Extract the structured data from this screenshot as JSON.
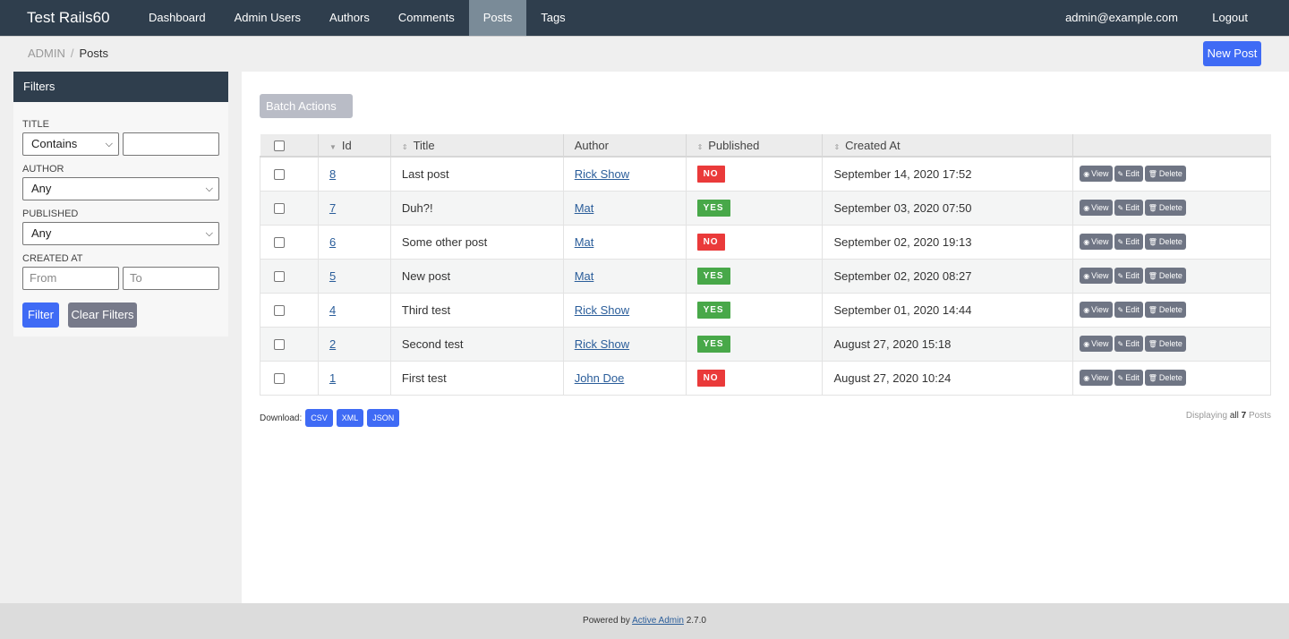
{
  "header": {
    "brand": "Test Rails60",
    "nav": [
      {
        "label": "Dashboard",
        "active": false
      },
      {
        "label": "Admin Users",
        "active": false
      },
      {
        "label": "Authors",
        "active": false
      },
      {
        "label": "Comments",
        "active": false
      },
      {
        "label": "Posts",
        "active": true
      },
      {
        "label": "Tags",
        "active": false
      }
    ],
    "user": "admin@example.com",
    "logout": "Logout"
  },
  "breadcrumb": {
    "root": "ADMIN",
    "sep": "/",
    "current": "Posts"
  },
  "actions": {
    "new_post": "New Post"
  },
  "filters": {
    "heading": "Filters",
    "title_label": "Title",
    "title_op": "Contains",
    "title_value": "",
    "author_label": "Author",
    "author_value": "Any",
    "published_label": "Published",
    "published_value": "Any",
    "created_label": "Created At",
    "from_placeholder": "From",
    "to_placeholder": "To",
    "filter_button": "Filter",
    "clear_button": "Clear Filters"
  },
  "batch_actions": "Batch Actions",
  "table": {
    "columns": [
      "Id",
      "Title",
      "Author",
      "Published",
      "Created At"
    ],
    "rows": [
      {
        "id": "8",
        "title": "Last post",
        "author": "Rick Show",
        "published": "NO",
        "created": "September 14, 2020 17:52"
      },
      {
        "id": "7",
        "title": "Duh?!",
        "author": "Mat",
        "published": "YES",
        "created": "September 03, 2020 07:50"
      },
      {
        "id": "6",
        "title": "Some other post",
        "author": "Mat",
        "published": "NO",
        "created": "September 02, 2020 19:13"
      },
      {
        "id": "5",
        "title": "New post",
        "author": "Mat",
        "published": "YES",
        "created": "September 02, 2020 08:27"
      },
      {
        "id": "4",
        "title": "Third test",
        "author": "Rick Show",
        "published": "YES",
        "created": "September 01, 2020 14:44"
      },
      {
        "id": "2",
        "title": "Second test",
        "author": "Rick Show",
        "published": "YES",
        "created": "August 27, 2020 15:18"
      },
      {
        "id": "1",
        "title": "First test",
        "author": "John Doe",
        "published": "NO",
        "created": "August 27, 2020 10:24"
      }
    ],
    "row_actions": {
      "view": "View",
      "edit": "Edit",
      "delete": "Delete"
    }
  },
  "download": {
    "label": "Download:",
    "formats": [
      "CSV",
      "XML",
      "JSON"
    ]
  },
  "pagination": {
    "prefix": "Displaying",
    "all": "all",
    "count": "7",
    "suffix": "Posts"
  },
  "footer": {
    "text": "Powered by",
    "link": "Active Admin",
    "version": "2.7.0"
  },
  "colors": {
    "header": "#2f3e4d",
    "primary": "#3f6bf5",
    "yes": "#48a849",
    "no": "#ea3a3a"
  },
  "icons": {
    "view": "eye-icon",
    "edit": "pencil-icon",
    "delete": "trash-icon",
    "sort": "sort-icon"
  }
}
